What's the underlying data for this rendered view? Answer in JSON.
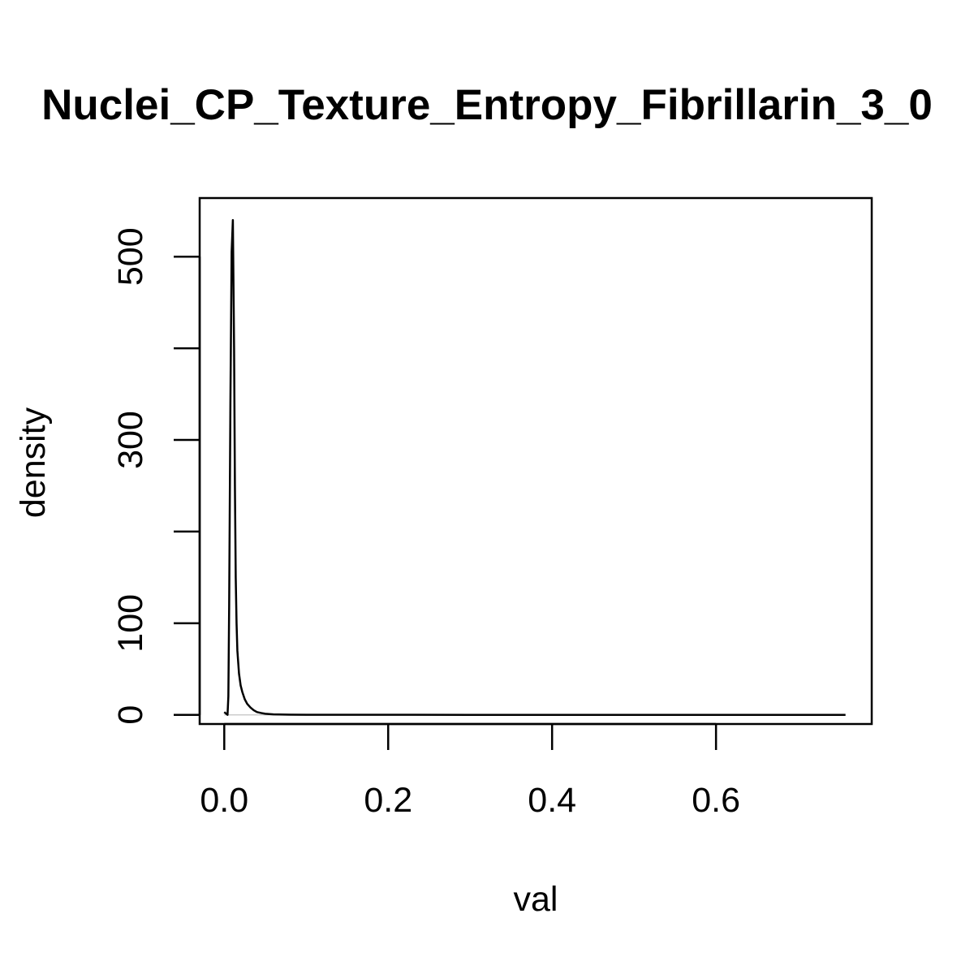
{
  "chart_data": {
    "type": "line",
    "title": "Nuclei_CP_Texture_Entropy_Fibrillarin_3_0",
    "xlabel": "val",
    "ylabel": "density",
    "xlim": [
      -0.03,
      0.79
    ],
    "ylim": [
      -10,
      564
    ],
    "x_ticks": [
      "0.0",
      "0.2",
      "0.4",
      "0.6"
    ],
    "x_tick_values": [
      0.0,
      0.2,
      0.4,
      0.6
    ],
    "y_ticks": [
      0,
      100,
      200,
      300,
      400,
      500
    ],
    "y_tick_labels": [
      "0",
      "100",
      "",
      "300",
      "",
      "500"
    ],
    "baseline": 0,
    "grid": false,
    "series": [
      {
        "x": [
          0.0,
          0.004,
          0.005,
          0.006,
          0.0075,
          0.009,
          0.0105,
          0.012,
          0.013,
          0.014,
          0.015,
          0.016,
          0.018,
          0.02,
          0.022,
          0.025,
          0.028,
          0.032,
          0.036,
          0.04,
          0.045,
          0.05,
          0.06,
          0.08,
          0.1,
          0.2,
          0.3,
          0.4,
          0.5,
          0.6,
          0.7,
          0.758
        ],
        "y": [
          3,
          0,
          20,
          120,
          340,
          505,
          540,
          400,
          250,
          150,
          100,
          70,
          45,
          32,
          25,
          17,
          12,
          8,
          5,
          3,
          2,
          1.2,
          0.5,
          0.2,
          0.1,
          0.05,
          0.02,
          0.01,
          0.01,
          0.01,
          0.01,
          0.01
        ]
      }
    ]
  }
}
